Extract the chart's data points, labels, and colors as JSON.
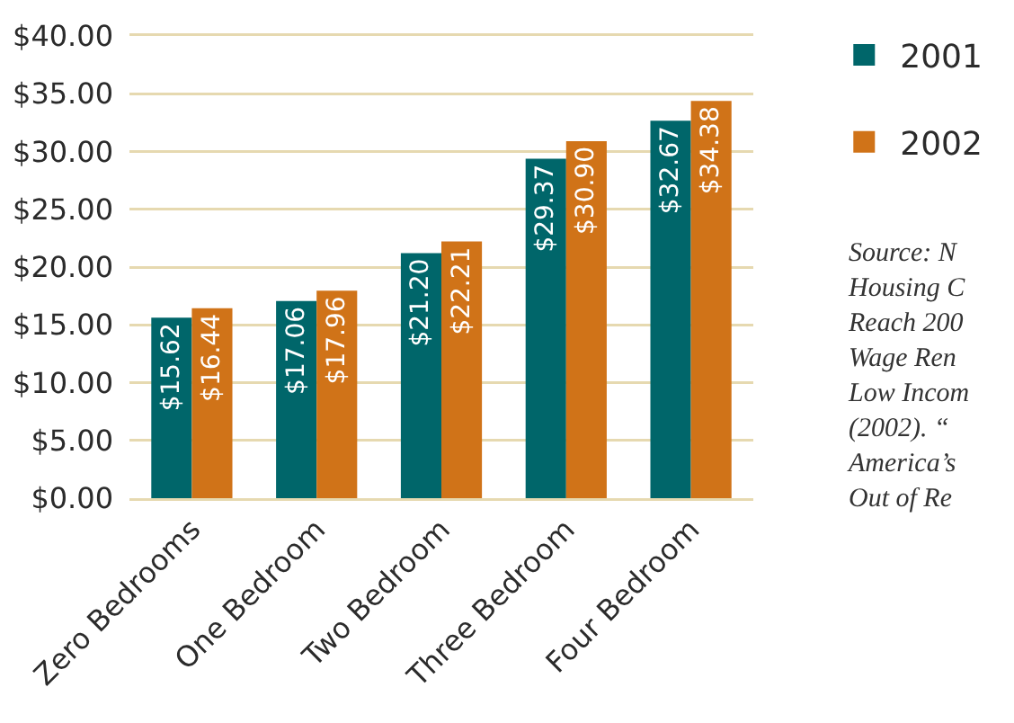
{
  "chart_data": {
    "type": "bar",
    "categories": [
      "Zero Bedrooms",
      "One Bedroom",
      "Two Bedroom",
      "Three Bedroom",
      "Four Bedroom"
    ],
    "series": [
      {
        "name": "2001",
        "color": "#00666a",
        "values": [
          15.62,
          17.06,
          21.2,
          29.37,
          32.67
        ],
        "value_labels": [
          "$15.62",
          "$17.06",
          "$21.20",
          "$29.37",
          "$32.67"
        ]
      },
      {
        "name": "2002",
        "color": "#d07318",
        "values": [
          16.44,
          17.96,
          22.21,
          30.9,
          34.38
        ],
        "value_labels": [
          "$16.44",
          "$17.96",
          "$22.21",
          "$30.90",
          "$34.38"
        ]
      }
    ],
    "ylim": [
      0,
      40
    ],
    "yticks": [
      {
        "value": 0,
        "label": "$0.00"
      },
      {
        "value": 5,
        "label": "$5.00"
      },
      {
        "value": 10,
        "label": "$10.00"
      },
      {
        "value": 15,
        "label": "$15.00"
      },
      {
        "value": 20,
        "label": "$20.00"
      },
      {
        "value": 25,
        "label": "$25.00"
      },
      {
        "value": 30,
        "label": "$30.00"
      },
      {
        "value": 35,
        "label": "$35.00"
      },
      {
        "value": 40,
        "label": "$40.00"
      }
    ],
    "grid": "y",
    "legend": "top right",
    "annotations": [
      "Source: N\nHousing C\nReach 200\nWage Ren\nLow Incom\n(2002). “\nAmerica’s\nOut of Re"
    ]
  }
}
